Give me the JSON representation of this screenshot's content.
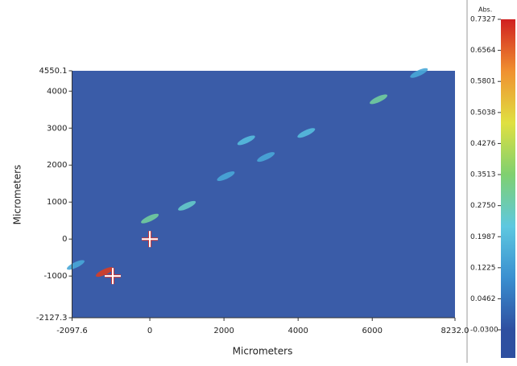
{
  "chart_data": {
    "type": "heatmap",
    "xlabel": "Micrometers",
    "ylabel": "Micrometers",
    "colorbar_label": "Abs.",
    "background_color": "#3a5ca8",
    "xlim": [
      -2097.6,
      8232.0
    ],
    "xticks": [
      -2097.6,
      0,
      2000,
      4000,
      6000,
      {
        "value": 8232.0,
        "label": "8232.0"
      }
    ],
    "ylim": [
      -2127.3,
      4550.1
    ],
    "yticks": [
      -2127.3,
      -1000,
      0,
      1000,
      2000,
      3000,
      4000,
      4550.1
    ],
    "clim": [
      -0.03,
      0.7327
    ],
    "cticks": [
      {
        "value": -0.03,
        "label": "-0.0300"
      },
      0.0462,
      0.1225,
      0.1987,
      {
        "value": 0.275,
        "label": "0.2750"
      },
      0.3513,
      0.4276,
      0.5038,
      0.5801,
      0.6564,
      0.7327
    ],
    "colormap": [
      "#2e4fa0",
      "#3a8fd0",
      "#5ec8e0",
      "#7fd070",
      "#e0e040",
      "#f09030",
      "#d02020"
    ],
    "features": {
      "x": [
        0,
        1000,
        2600,
        2050,
        3130,
        4220,
        6170,
        7260,
        -1220,
        -2000
      ],
      "y": [
        555,
        900,
        2670,
        1700,
        2220,
        2870,
        3780,
        4490,
        -890,
        -700
      ],
      "values": [
        0.3,
        0.25,
        0.2,
        0.15,
        0.15,
        0.2,
        0.3,
        0.15,
        0.7,
        0.15
      ]
    },
    "markers": {
      "x": [
        0,
        -1000
      ],
      "y": [
        0,
        -1000
      ]
    }
  }
}
